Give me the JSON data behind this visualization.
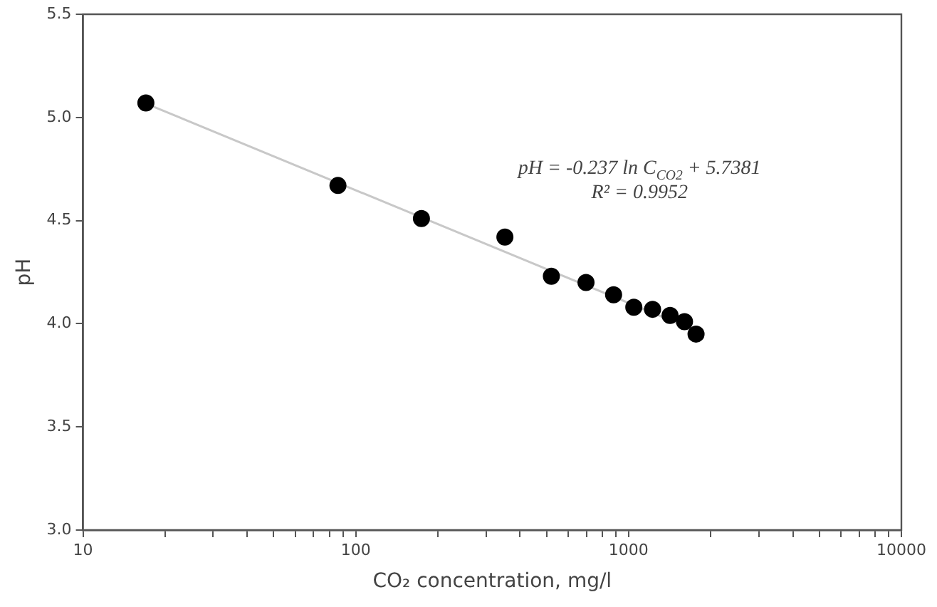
{
  "chart_data": {
    "type": "scatter",
    "xlabel": "CO₂ concentration, mg/l",
    "ylabel": "pH",
    "log": "x",
    "grid": false,
    "legend": false,
    "marker": "circle",
    "xlim": [
      10,
      10000
    ],
    "ylim": [
      3,
      5.5
    ],
    "xticks": [
      10,
      {
        "value": 20,
        "label": null
      },
      {
        "value": 30,
        "label": null
      },
      {
        "value": 40,
        "label": null
      },
      {
        "value": 50,
        "label": null
      },
      {
        "value": 60,
        "label": null
      },
      {
        "value": 70,
        "label": null
      },
      {
        "value": 80,
        "label": null
      },
      {
        "value": 90,
        "label": null
      },
      100,
      {
        "value": 200,
        "label": null
      },
      {
        "value": 300,
        "label": null
      },
      {
        "value": 400,
        "label": null
      },
      {
        "value": 500,
        "label": null
      },
      {
        "value": 600,
        "label": null
      },
      {
        "value": 700,
        "label": null
      },
      {
        "value": 800,
        "label": null
      },
      {
        "value": 900,
        "label": null
      },
      1000,
      {
        "value": 2000,
        "label": null
      },
      {
        "value": 3000,
        "label": null
      },
      {
        "value": 4000,
        "label": null
      },
      {
        "value": 5000,
        "label": null
      },
      {
        "value": 6000,
        "label": null
      },
      {
        "value": 7000,
        "label": null
      },
      {
        "value": 8000,
        "label": null
      },
      {
        "value": 9000,
        "label": null
      },
      10000
    ],
    "yticks": [
      {
        "value": 3,
        "label": "3.0"
      },
      {
        "value": 3.5,
        "label": "3.5"
      },
      {
        "value": 4,
        "label": "4.0"
      },
      {
        "value": 4.5,
        "label": "4.5"
      },
      {
        "value": 5,
        "label": "5.0"
      },
      {
        "value": 5.5,
        "label": "5.5"
      }
    ],
    "series": [
      {
        "color": "#000000",
        "x": [
          17,
          86,
          174,
          352,
          521,
          698,
          881,
          1045,
          1224,
          1419,
          1603,
          1767
        ],
        "values": [
          5.07,
          4.67,
          4.51,
          4.42,
          4.23,
          4.2,
          4.14,
          4.08,
          4.07,
          4.04,
          4.01,
          3.95
        ]
      },
      {
        "type": "line",
        "color": "#c8c8c8",
        "marker": "none",
        "line_style": "solid",
        "x": [
          17,
          1767
        ],
        "values": [
          5.067,
          3.966
        ]
      }
    ],
    "annotations": [
      "pH = -0.237 ln C$_{CO2}$ + 5.7381",
      "R² = 0.9952"
    ]
  }
}
